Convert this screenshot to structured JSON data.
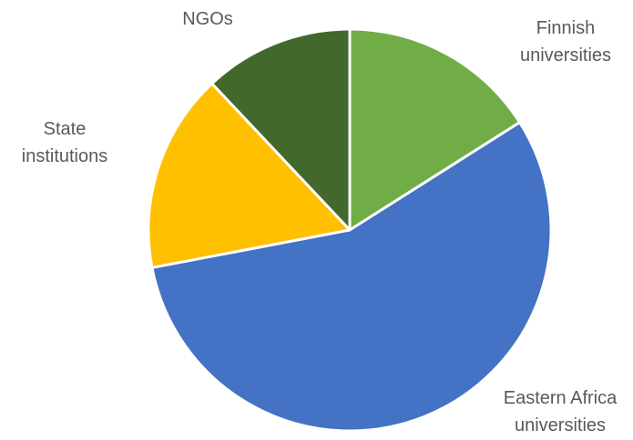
{
  "chart_data": {
    "type": "pie",
    "title": "",
    "series": [
      {
        "labels": [
          [
            "Finnish",
            "universities"
          ],
          [
            "Eastern Africa",
            "universities"
          ],
          [
            "State",
            "institutions"
          ],
          [
            "NGOs"
          ]
        ],
        "values": [
          16,
          56,
          16,
          12
        ],
        "colors": [
          "#70AD47",
          "#4472C4",
          "#FFC000",
          "#43682B"
        ]
      }
    ],
    "start_angle_deg": 0,
    "direction": "clockwise",
    "legend": "none",
    "data_labels": "outside-category-names"
  }
}
